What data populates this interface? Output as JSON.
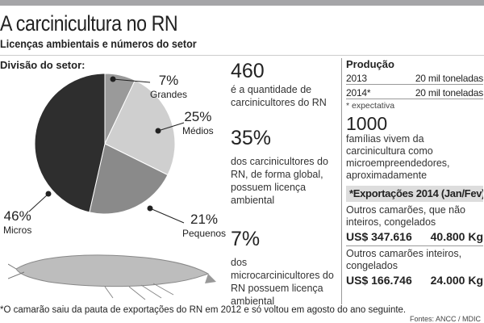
{
  "header": {
    "title": "A carcinicultura no RN",
    "subtitle": "Licenças ambientais e números do setor"
  },
  "division": {
    "label": "Divisão do setor:"
  },
  "chart_data": {
    "type": "pie",
    "title": "Divisão do setor:",
    "categories": [
      "Grandes",
      "Médios",
      "Pequenos",
      "Micros"
    ],
    "values": [
      7,
      25,
      21,
      46
    ],
    "labels": [
      "7%",
      "25%",
      "21%",
      "46%"
    ],
    "colors": [
      "#9a9a9a",
      "#cfcfcf",
      "#8a8a8a",
      "#2e2e2e"
    ]
  },
  "stats": [
    {
      "value": "460",
      "text": "é a quantidade de carcinicultores do RN"
    },
    {
      "value": "35%",
      "text": "dos carcinicultores do RN, de forma global, possuem licença ambiental"
    },
    {
      "value": "7%",
      "text": "dos microcarcinicultores do RN possuem licença ambiental"
    }
  ],
  "production": {
    "title": "Produção",
    "rows": [
      {
        "year": "2013",
        "value": "20 mil toneladas"
      },
      {
        "year": "2014*",
        "value": "20 mil toneladas"
      }
    ],
    "note": "* expectativa"
  },
  "families": {
    "value": "1000",
    "text": "famílias vivem da carcinicultura como microempreendedores, aproximadamente"
  },
  "exports": {
    "title": "*Exportações 2014 (Jan/Fev)",
    "items": [
      {
        "desc": "Outros camarões, que não inteiros, congelados",
        "usd": "US$ 347.616",
        "kg": "40.800 Kg"
      },
      {
        "desc": "Outros camarões inteiros, congelados",
        "usd": "US$ 166.746",
        "kg": "24.000 Kg"
      }
    ]
  },
  "footer": {
    "note": "*O camarão saiu da pauta de exportações do RN em 2012 e só voltou em agosto do ano seguinte.",
    "source": "Fontes: ANCC / MDIC"
  }
}
